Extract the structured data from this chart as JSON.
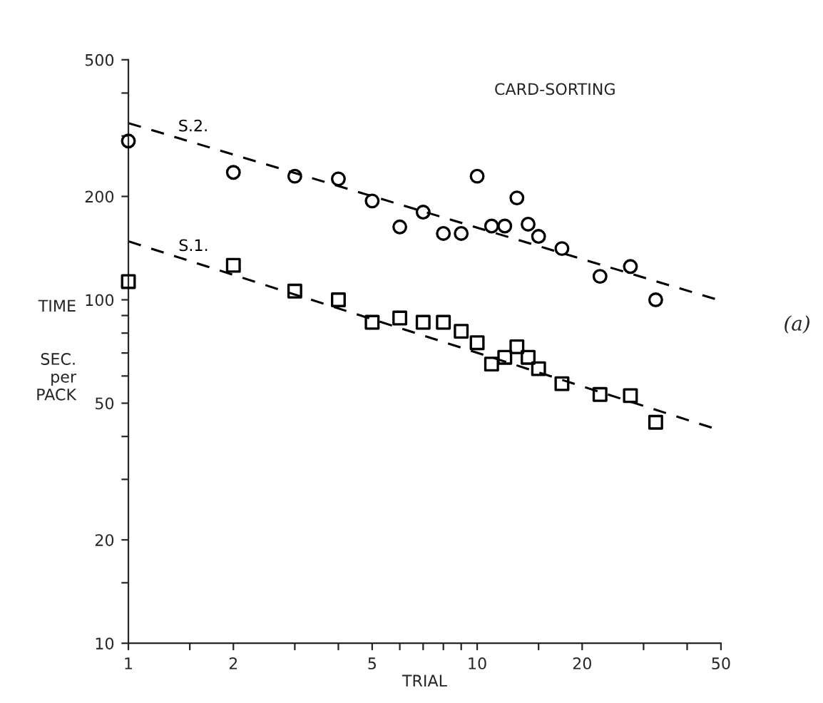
{
  "chart_data": {
    "type": "scatter",
    "title": "CARD-SORTING",
    "xlabel": "TRIAL",
    "ylabel": "TIME\n\n\nSEC.\nper\nPACK",
    "annotations": [
      "(a)"
    ],
    "log": "xy",
    "grid": false,
    "legend": false,
    "xlim": [
      1,
      50
    ],
    "xticks": [
      1,
      {
        "value": 1.5,
        "label": null
      },
      2,
      {
        "value": 3,
        "label": null
      },
      {
        "value": 4,
        "label": null
      },
      5,
      {
        "value": 6,
        "label": null
      },
      {
        "value": 7,
        "label": null
      },
      {
        "value": 8,
        "label": null
      },
      {
        "value": 9,
        "label": null
      },
      10,
      {
        "value": 15,
        "label": null
      },
      20,
      {
        "value": 30,
        "label": null
      },
      {
        "value": 40,
        "label": null
      },
      50
    ],
    "ylim": [
      10,
      500
    ],
    "yticks": [
      10,
      {
        "value": 15,
        "label": null
      },
      20,
      {
        "value": 30,
        "label": null
      },
      {
        "value": 40,
        "label": null
      },
      50,
      {
        "value": 60,
        "label": null
      },
      {
        "value": 70,
        "label": null
      },
      {
        "value": 80,
        "label": null
      },
      {
        "value": 90,
        "label": null
      },
      100,
      200,
      {
        "value": 300,
        "label": null
      },
      {
        "value": 400,
        "label": null
      },
      500
    ],
    "series": [
      {
        "marker": "circle",
        "color": "#000000",
        "x": [
          1,
          2,
          3,
          4,
          5,
          6,
          7,
          8,
          9,
          10,
          11,
          12,
          13,
          14,
          15,
          17.5,
          22.5,
          27.5,
          32.5
        ],
        "values": [
          290,
          235,
          229,
          225,
          194,
          163,
          180,
          156,
          156,
          229,
          164,
          164,
          198,
          166,
          153,
          141,
          117,
          125,
          100
        ]
      },
      {
        "type": "line",
        "name": "S.2.",
        "line_style": "dashed",
        "color": "#000000",
        "x": [
          1,
          49
        ],
        "values": [
          327,
          100
        ]
      },
      {
        "marker": "square",
        "color": "#000000",
        "x": [
          1,
          2,
          3,
          4,
          5,
          6,
          7,
          8,
          9,
          10,
          11,
          12,
          13,
          14,
          15,
          17.5,
          22.5,
          27.5,
          32.5
        ],
        "values": [
          113,
          126,
          106,
          100,
          86,
          88.5,
          86,
          86,
          81,
          75,
          65,
          68,
          73,
          68,
          63,
          57,
          53,
          52.6,
          44
        ]
      },
      {
        "type": "line",
        "name": "S.1.",
        "line_style": "dashed",
        "color": "#000000",
        "x": [
          1,
          50
        ],
        "values": [
          148,
          41.6
        ]
      }
    ]
  }
}
